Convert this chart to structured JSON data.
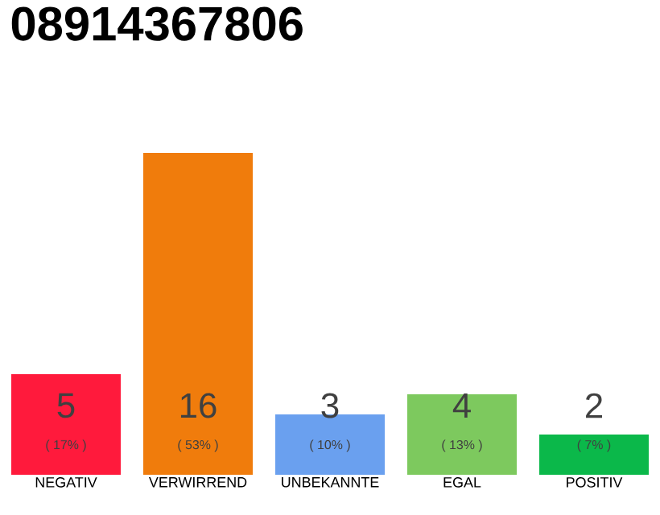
{
  "chart_data": {
    "type": "bar",
    "title": "08914367806",
    "categories": [
      "NEGATIV",
      "VERWIRREND",
      "UNBEKANNTE",
      "EGAL",
      "POSITIV"
    ],
    "values": [
      5,
      16,
      3,
      4,
      2
    ],
    "colors": [
      "#ff1a3c",
      "#f07c0c",
      "#6aa0ef",
      "#7dc95e",
      "#0bb84a"
    ],
    "value_labels": [
      "5",
      "16",
      "3",
      "4",
      "2"
    ],
    "annotations": [
      "( 17% )",
      "( 53% )",
      "( 10% )",
      "( 13% )",
      "( 7% )"
    ]
  }
}
